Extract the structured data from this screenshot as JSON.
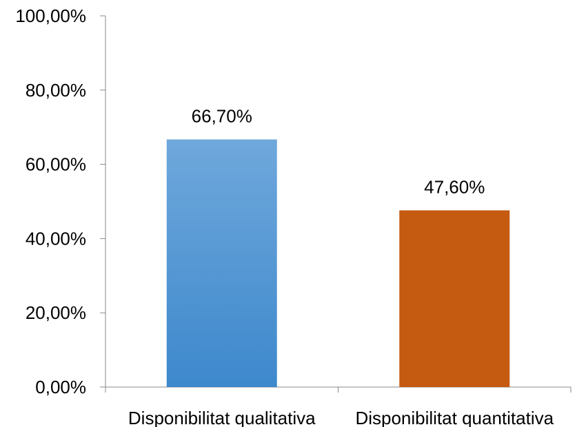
{
  "chart_data": {
    "type": "bar",
    "title": "",
    "xlabel": "",
    "ylabel": "",
    "categories": [
      "Disponibilitat qualitativa",
      "Disponibilitat quantitativa"
    ],
    "values": [
      66.7,
      47.6
    ],
    "value_labels": [
      "66,70%",
      "47,60%"
    ],
    "ylim": [
      0,
      100
    ],
    "y_ticks": [
      0,
      20,
      40,
      60,
      80,
      100
    ],
    "y_tick_labels": [
      "0,00%",
      "20,00%",
      "40,00%",
      "60,00%",
      "80,00%",
      "100,00%"
    ],
    "grid": false,
    "legend": "none",
    "colors": {
      "bar_1_top": "#6FA8DC",
      "bar_1_bottom": "#3D88CC",
      "bar_2": "#C55A11",
      "axis": "#888888"
    }
  }
}
